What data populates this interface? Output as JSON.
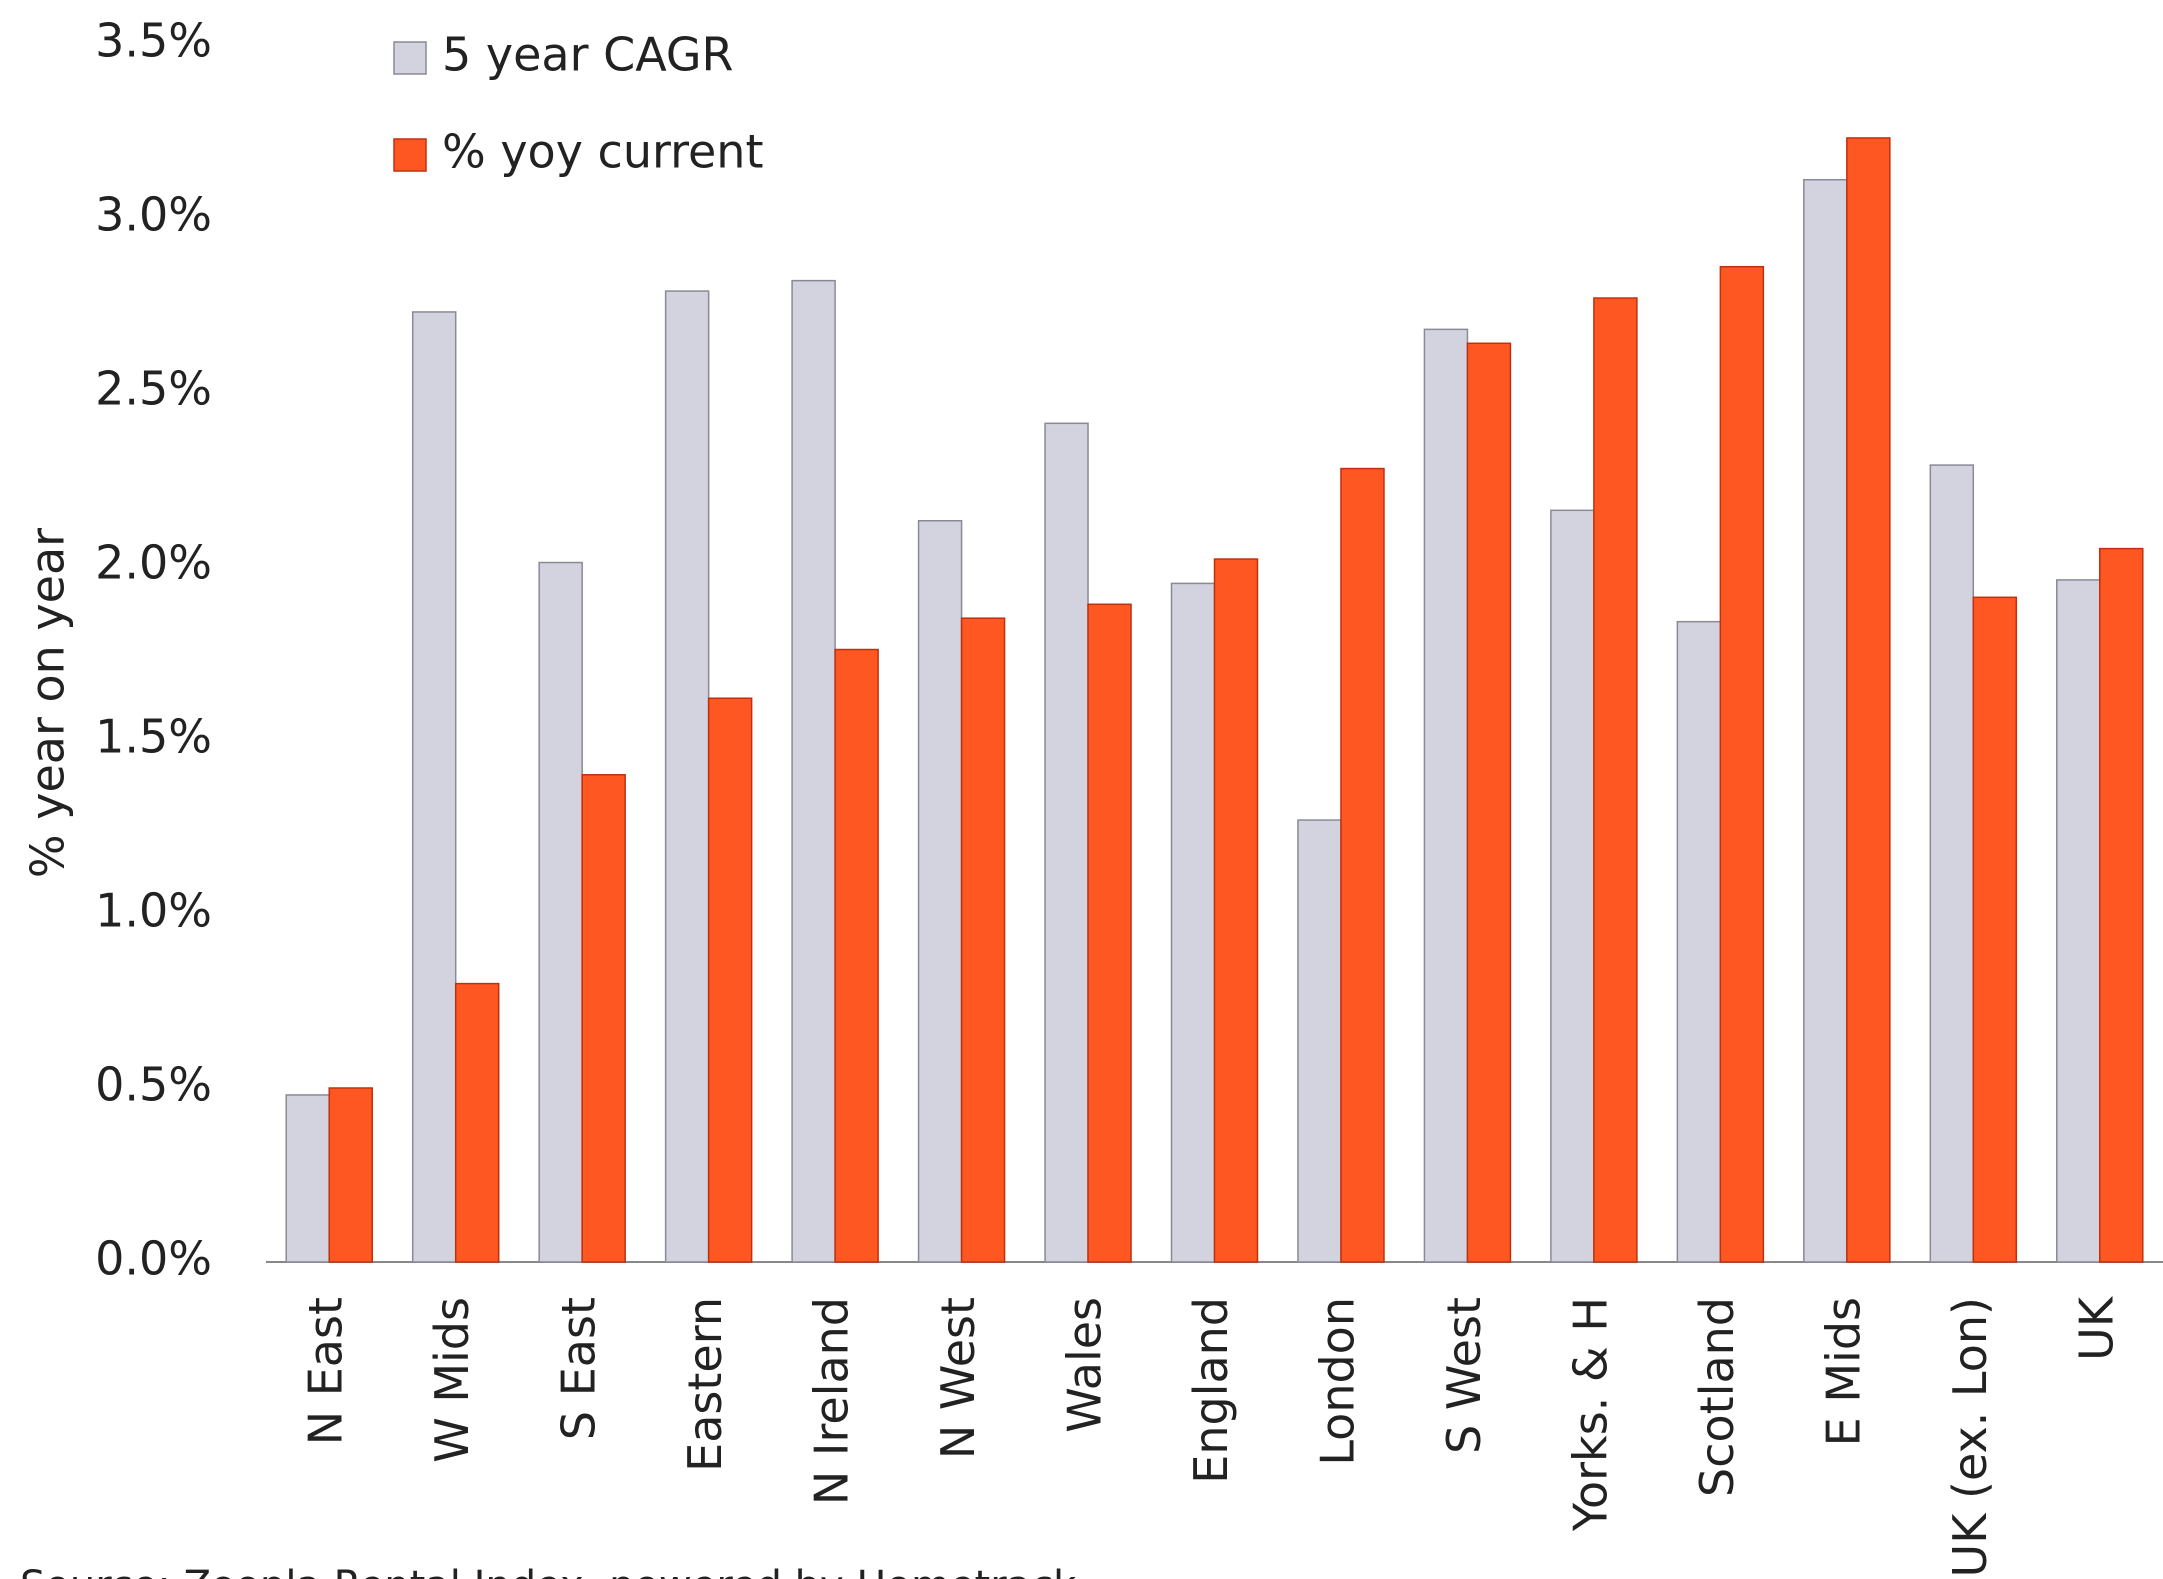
{
  "chart_data": {
    "type": "bar",
    "y_label": "% year on year",
    "source": "Source: Zoopla Rental Index, powered by Hometrack",
    "categories": [
      "N East",
      "W Mids",
      "S East",
      "Eastern",
      "N Ireland",
      "N West",
      "Wales",
      "England",
      "London",
      "S West",
      "Yorks. & H",
      "Scotland",
      "E Mids",
      "UK (ex. Lon)",
      "UK"
    ],
    "series": [
      {
        "name": "5 year CAGR",
        "color": "#d3d3df",
        "values": [
          0.48,
          2.73,
          2.01,
          2.79,
          2.82,
          2.13,
          2.41,
          1.95,
          1.27,
          2.68,
          2.16,
          1.84,
          3.11,
          2.29,
          1.96
        ]
      },
      {
        "name": "% yoy current",
        "color": "#ff5722",
        "values": [
          0.5,
          0.8,
          1.4,
          1.62,
          1.76,
          1.85,
          1.89,
          2.02,
          2.28,
          2.64,
          2.77,
          2.86,
          3.23,
          1.91,
          2.05
        ]
      }
    ],
    "ylim": [
      0,
      3.5
    ],
    "yticks": [
      {
        "value": 0,
        "label": "0.0%"
      },
      {
        "value": 0.5,
        "label": "0.5%"
      },
      {
        "value": 1,
        "label": "1.0%"
      },
      {
        "value": 1.5,
        "label": "1.5%"
      },
      {
        "value": 2,
        "label": "2.0%"
      },
      {
        "value": 2.5,
        "label": "2.5%"
      },
      {
        "value": 3,
        "label": "3.0%"
      },
      {
        "value": 3.5,
        "label": "3.5%"
      }
    ],
    "legend": "top-left"
  }
}
